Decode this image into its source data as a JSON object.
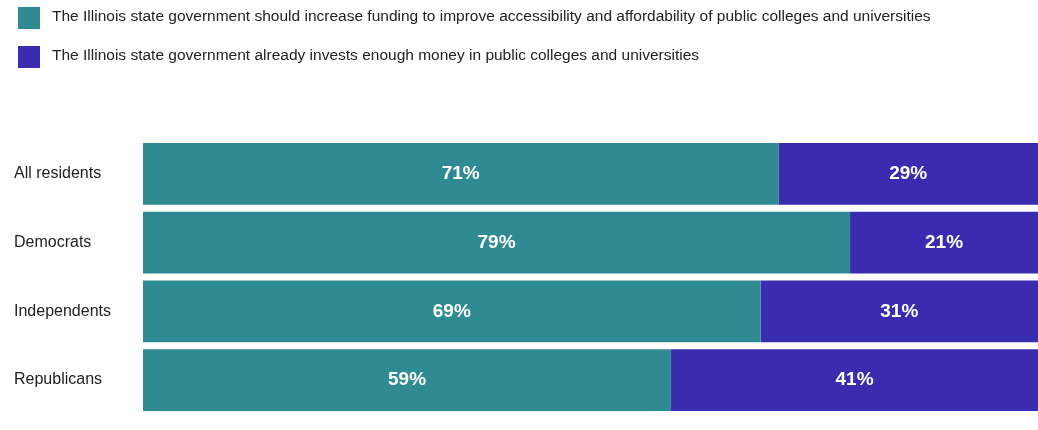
{
  "chart_data": {
    "type": "bar",
    "orientation": "horizontal",
    "stacked": true,
    "categories": [
      "All residents",
      "Democrats",
      "Independents",
      "Republicans"
    ],
    "series": [
      {
        "name": "The Illinois state government should increase funding to improve accessibility and affordability of public colleges and universities",
        "color": "#308a92",
        "values": [
          71,
          79,
          69,
          59
        ],
        "value_labels": [
          "71%",
          "79%",
          "69%",
          "59%"
        ]
      },
      {
        "name": "The Illinois state government already invests enough money in public colleges and universities",
        "color": "#3a2cae",
        "values": [
          29,
          21,
          31,
          41
        ],
        "value_labels": [
          "29%",
          "21%",
          "31%",
          "41%"
        ]
      }
    ],
    "xlim": [
      0,
      100
    ],
    "tick_labels": "y",
    "legend": "top left"
  }
}
